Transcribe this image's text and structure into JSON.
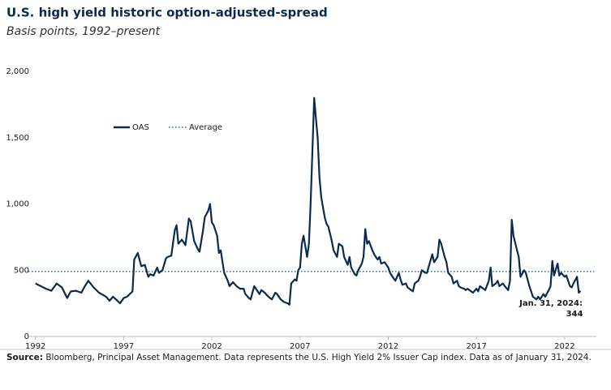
{
  "chart_data": {
    "type": "line",
    "title": "U.S. high yield historic option-adjusted-spread",
    "subtitle": "Basis points, 1992–present",
    "source_label": "Source:",
    "source": "Bloomberg, Principal Asset Management. Data represents the U.S. High Yield 2% Issuer Cap index. Data as of January 31, 2024.",
    "annotation": [
      "Jan. 31, 2024:",
      "344"
    ],
    "xlim": [
      1991.6,
      2023.8
    ],
    "xticks": [
      1992,
      1997,
      2002,
      2007,
      2012,
      2017,
      2022
    ],
    "ylim": [
      0,
      2000
    ],
    "yticks": [
      0,
      500,
      {
        "value": 1000,
        "label": "1,000"
      },
      {
        "value": 1500,
        "label": "1,500"
      },
      {
        "value": 2000,
        "label": "2,000"
      }
    ],
    "grid": false,
    "average": {
      "name": "Average",
      "value": 490,
      "color": "#2e6f9e"
    },
    "x": [
      1992.0,
      1992.3,
      1992.6,
      1992.9,
      1993.2,
      1993.5,
      1993.8,
      1994.0,
      1994.3,
      1994.6,
      1994.8,
      1995.0,
      1995.3,
      1995.6,
      1996.0,
      1996.2,
      1996.4,
      1996.8,
      1997.0,
      1997.2,
      1997.5,
      1997.6,
      1997.8,
      1998.0,
      1998.2,
      1998.4,
      1998.5,
      1998.7,
      1998.9,
      1999.0,
      1999.2,
      1999.4,
      1999.5,
      1999.7,
      1999.9,
      2000.0,
      2000.1,
      2000.3,
      2000.5,
      2000.7,
      2000.8,
      2001.0,
      2001.2,
      2001.3,
      2001.5,
      2001.6,
      2001.8,
      2001.9,
      2002.0,
      2002.1,
      2002.3,
      2002.4,
      2002.5,
      2002.7,
      2002.9,
      2003.0,
      2003.2,
      2003.4,
      2003.6,
      2003.8,
      2003.9,
      2004.1,
      2004.2,
      2004.4,
      2004.5,
      2004.7,
      2004.8,
      2005.0,
      2005.2,
      2005.4,
      2005.6,
      2005.7,
      2005.9,
      2006.1,
      2006.3,
      2006.4,
      2006.5,
      2006.7,
      2006.8,
      2006.9,
      2007.0,
      2007.1,
      2007.2,
      2007.4,
      2007.5,
      2007.6,
      2007.7,
      2007.8,
      2007.9,
      2008.0,
      2008.1,
      2008.2,
      2008.4,
      2008.5,
      2008.6,
      2008.8,
      2008.9,
      2009.1,
      2009.2,
      2009.4,
      2009.5,
      2009.7,
      2009.8,
      2009.9,
      2010.1,
      2010.2,
      2010.3,
      2010.5,
      2010.6,
      2010.7,
      2010.8,
      2010.9,
      2011.1,
      2011.2,
      2011.4,
      2011.5,
      2011.6,
      2011.8,
      2012.0,
      2012.1,
      2012.3,
      2012.4,
      2012.6,
      2012.7,
      2012.8,
      2013.0,
      2013.1,
      2013.2,
      2013.4,
      2013.5,
      2013.7,
      2013.8,
      2013.9,
      2014.1,
      2014.2,
      2014.3,
      2014.5,
      2014.6,
      2014.8,
      2014.9,
      2015.0,
      2015.2,
      2015.3,
      2015.4,
      2015.6,
      2015.7,
      2015.9,
      2016.0,
      2016.1,
      2016.3,
      2016.4,
      2016.5,
      2016.7,
      2016.8,
      2017.0,
      2017.1,
      2017.2,
      2017.4,
      2017.5,
      2017.7,
      2017.8,
      2017.9,
      2018.1,
      2018.2,
      2018.3,
      2018.5,
      2018.6,
      2018.8,
      2018.9,
      2019.0,
      2019.1,
      2019.3,
      2019.4,
      2019.5,
      2019.7,
      2019.8,
      2020.0,
      2020.1,
      2020.2,
      2020.4,
      2020.5,
      2020.6,
      2020.8,
      2020.9,
      2021.1,
      2021.2,
      2021.3,
      2021.4,
      2021.6,
      2021.7,
      2021.8,
      2022.0,
      2022.1,
      2022.3,
      2022.4,
      2022.5,
      2022.7,
      2022.8,
      2022.9
    ],
    "series": [
      {
        "name": "OAS",
        "color": "#0a2a4f",
        "values": [
          400,
          380,
          360,
          345,
          400,
          370,
          290,
          340,
          345,
          330,
          380,
          420,
          370,
          330,
          300,
          270,
          300,
          250,
          290,
          300,
          340,
          580,
          630,
          530,
          540,
          450,
          470,
          460,
          520,
          480,
          500,
          590,
          600,
          610,
          800,
          840,
          700,
          730,
          690,
          890,
          870,
          720,
          660,
          640,
          800,
          900,
          950,
          1000,
          860,
          840,
          760,
          630,
          650,
          480,
          420,
          380,
          410,
          380,
          360,
          360,
          320,
          290,
          280,
          380,
          360,
          320,
          350,
          330,
          300,
          280,
          330,
          320,
          280,
          260,
          250,
          240,
          400,
          430,
          420,
          500,
          520,
          700,
          760,
          600,
          700,
          1000,
          1400,
          1800,
          1650,
          1500,
          1200,
          1050,
          900,
          850,
          830,
          720,
          650,
          600,
          700,
          680,
          600,
          540,
          600,
          520,
          470,
          460,
          500,
          550,
          600,
          810,
          700,
          720,
          650,
          620,
          580,
          600,
          550,
          560,
          520,
          480,
          440,
          420,
          480,
          430,
          390,
          400,
          370,
          360,
          340,
          400,
          420,
          450,
          500,
          480,
          480,
          530,
          620,
          560,
          600,
          730,
          700,
          600,
          560,
          480,
          450,
          400,
          420,
          380,
          370,
          360,
          350,
          360,
          340,
          330,
          360,
          340,
          380,
          360,
          350,
          420,
          520,
          380,
          400,
          420,
          380,
          400,
          380,
          350,
          420,
          880,
          760,
          650,
          600,
          450,
          500,
          480,
          380,
          340,
          300,
          280,
          300,
          280,
          320,
          300,
          350,
          380,
          570,
          460,
          550,
          460,
          480,
          450,
          460,
          380,
          370,
          400,
          450,
          330,
          344
        ]
      }
    ]
  }
}
